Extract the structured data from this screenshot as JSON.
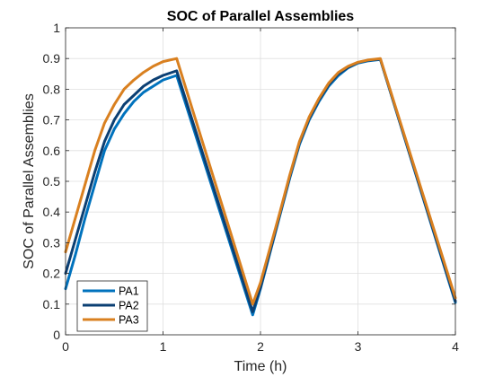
{
  "chart_data": {
    "type": "line",
    "title": "SOC of Parallel Assemblies",
    "xlabel": "Time (h)",
    "ylabel": "SOC of Parallel Assemblies",
    "xlim": [
      0,
      4
    ],
    "ylim": [
      0,
      1
    ],
    "xticks": [
      "0",
      "1",
      "2",
      "3",
      "4"
    ],
    "yticks": [
      "0",
      "0.1",
      "0.2",
      "0.3",
      "0.4",
      "0.5",
      "0.6",
      "0.7",
      "0.8",
      "0.9",
      "1"
    ],
    "grid": true,
    "legend_position": "bottom-left",
    "series": [
      {
        "name": "PA1",
        "color": "#0072BD",
        "x": [
          0,
          0.1,
          0.2,
          0.3,
          0.4,
          0.5,
          0.6,
          0.7,
          0.8,
          0.9,
          1.0,
          1.14,
          1.92,
          2.0,
          2.1,
          2.2,
          2.3,
          2.4,
          2.5,
          2.6,
          2.7,
          2.8,
          2.9,
          3.0,
          3.1,
          3.23,
          4.0
        ],
        "y": [
          0.15,
          0.26,
          0.38,
          0.49,
          0.6,
          0.67,
          0.72,
          0.76,
          0.79,
          0.81,
          0.83,
          0.845,
          0.065,
          0.15,
          0.27,
          0.39,
          0.51,
          0.62,
          0.7,
          0.76,
          0.81,
          0.845,
          0.87,
          0.885,
          0.892,
          0.897,
          0.105
        ]
      },
      {
        "name": "PA2",
        "color": "#0B3F73",
        "x": [
          0,
          0.1,
          0.2,
          0.3,
          0.4,
          0.5,
          0.6,
          0.7,
          0.8,
          0.9,
          1.0,
          1.14,
          1.92,
          2.0,
          2.1,
          2.2,
          2.3,
          2.4,
          2.5,
          2.6,
          2.7,
          2.8,
          2.9,
          3.0,
          3.1,
          3.23,
          4.0
        ],
        "y": [
          0.2,
          0.31,
          0.42,
          0.53,
          0.63,
          0.7,
          0.75,
          0.78,
          0.81,
          0.83,
          0.845,
          0.86,
          0.075,
          0.155,
          0.275,
          0.395,
          0.515,
          0.625,
          0.705,
          0.765,
          0.815,
          0.85,
          0.872,
          0.887,
          0.894,
          0.898,
          0.11
        ]
      },
      {
        "name": "PA3",
        "color": "#D98020",
        "x": [
          0,
          0.1,
          0.2,
          0.3,
          0.4,
          0.5,
          0.6,
          0.7,
          0.8,
          0.9,
          1.0,
          1.14,
          1.92,
          2.0,
          2.1,
          2.2,
          2.3,
          2.4,
          2.5,
          2.6,
          2.7,
          2.8,
          2.9,
          3.0,
          3.1,
          3.23,
          4.0
        ],
        "y": [
          0.27,
          0.38,
          0.49,
          0.6,
          0.69,
          0.75,
          0.8,
          0.83,
          0.855,
          0.875,
          0.89,
          0.9,
          0.1,
          0.17,
          0.285,
          0.4,
          0.52,
          0.63,
          0.71,
          0.77,
          0.82,
          0.855,
          0.875,
          0.888,
          0.895,
          0.9,
          0.12
        ]
      }
    ]
  }
}
